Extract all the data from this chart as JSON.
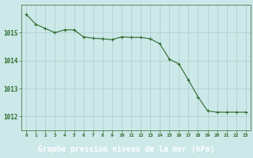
{
  "x": [
    0,
    1,
    2,
    3,
    4,
    5,
    6,
    7,
    8,
    9,
    10,
    11,
    12,
    13,
    14,
    15,
    16,
    17,
    18,
    19,
    20,
    21,
    22,
    23
  ],
  "y": [
    1015.65,
    1015.3,
    1015.15,
    1015.0,
    1015.1,
    1015.1,
    1014.85,
    1014.8,
    1014.78,
    1014.75,
    1014.85,
    1014.83,
    1014.83,
    1014.78,
    1014.6,
    1014.05,
    1013.88,
    1013.3,
    1012.7,
    1012.2,
    1012.15,
    1012.15,
    1012.15,
    1012.15
  ],
  "line_color": "#2d6a2d",
  "marker_color": "#2d6a2d",
  "bg_color": "#cce8e8",
  "grid_color": "#aacccc",
  "xlabel": "Graphe pression niveau de la mer (hPa)",
  "xlabel_color": "#ffffff",
  "xlabel_bg": "#2d6a2d",
  "tick_color": "#2d6a2d",
  "spine_color": "#2d6a2d",
  "ylim": [
    1011.5,
    1016.0
  ],
  "yticks": [
    1012,
    1013,
    1014,
    1015
  ],
  "xlim": [
    -0.5,
    23.5
  ],
  "xtick_labels": [
    "0",
    "1",
    "2",
    "3",
    "4",
    "5",
    "6",
    "7",
    "8",
    "9",
    "10",
    "11",
    "12",
    "13",
    "14",
    "15",
    "16",
    "17",
    "18",
    "19",
    "20",
    "21",
    "22",
    "23"
  ]
}
